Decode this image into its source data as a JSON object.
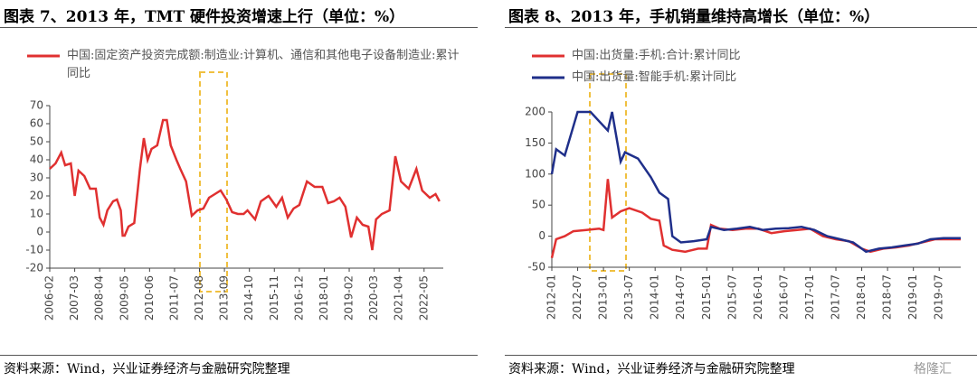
{
  "chart_data": [
    {
      "type": "line",
      "title": "图表 7、2013 年，TMT 硬件投资增速上行（单位：%）",
      "source": "资料来源：Wind，兴业证券经济与金融研究院整理",
      "xlim": [
        "2006-02",
        "2023-03"
      ],
      "xticks": [
        "2006-02",
        "2007-03",
        "2008-04",
        "2009-05",
        "2010-06",
        "2011-07",
        "2012-08",
        "2013-09",
        "2014-10",
        "2015-11",
        "2016-12",
        "2018-01",
        "2019-02",
        "2020-03",
        "2021-04",
        "2022-05"
      ],
      "ylim": [
        -20,
        70
      ],
      "yticks": [
        -20,
        -10,
        0,
        10,
        20,
        30,
        40,
        50,
        60,
        70
      ],
      "series": [
        {
          "name": "中国:固定资产投资完成额:制造业:计算机、通信和其他电子设备制造业:累计同比",
          "color": "#e03030",
          "x": [
            "2006-02",
            "2006-05",
            "2006-08",
            "2006-10",
            "2007-01",
            "2007-03",
            "2007-05",
            "2007-08",
            "2007-11",
            "2008-02",
            "2008-04",
            "2008-06",
            "2008-08",
            "2008-11",
            "2009-01",
            "2009-03",
            "2009-04",
            "2009-05",
            "2009-07",
            "2009-10",
            "2010-01",
            "2010-03",
            "2010-05",
            "2010-07",
            "2010-10",
            "2011-01",
            "2011-03",
            "2011-05",
            "2011-08",
            "2011-10",
            "2012-01",
            "2012-04",
            "2012-07",
            "2012-10",
            "2013-01",
            "2013-04",
            "2013-07",
            "2013-10",
            "2014-01",
            "2014-04",
            "2014-07",
            "2014-09",
            "2015-01",
            "2015-04",
            "2015-08",
            "2015-12",
            "2016-03",
            "2016-06",
            "2016-09",
            "2016-12",
            "2017-04",
            "2017-08",
            "2017-12",
            "2018-03",
            "2018-06",
            "2018-09",
            "2018-12",
            "2019-03",
            "2019-06",
            "2019-09",
            "2019-12",
            "2020-02",
            "2020-04",
            "2020-07",
            "2020-11",
            "2021-02",
            "2021-05",
            "2021-09",
            "2022-01",
            "2022-04",
            "2022-08",
            "2022-11",
            "2023-01"
          ],
          "values": [
            35,
            38,
            44,
            37,
            38,
            20,
            34,
            31,
            24,
            24,
            8,
            4,
            12,
            17,
            18,
            12,
            -2,
            -2,
            3,
            5,
            35,
            52,
            40,
            46,
            48,
            62,
            62,
            48,
            40,
            35,
            28,
            9,
            12,
            13,
            19,
            21,
            23,
            18,
            11,
            10,
            10,
            12,
            7,
            17,
            20,
            14,
            19,
            8,
            13,
            15,
            28,
            25,
            25,
            16,
            17,
            19,
            14,
            -3,
            8,
            4,
            3,
            -10,
            7,
            10,
            12,
            42,
            28,
            24,
            35,
            23,
            19,
            21,
            17
          ]
        }
      ]
    },
    {
      "type": "line",
      "title": "图表 8、2013 年，手机销量维持高增长（单位：%）",
      "source": "资料来源：Wind，兴业证券经济与金融研究院整理",
      "watermark": "格隆汇",
      "xlim": [
        "2012-01",
        "2019-12"
      ],
      "xticks": [
        "2012-01",
        "2012-07",
        "2013-01",
        "2013-07",
        "2014-01",
        "2014-07",
        "2015-01",
        "2015-07",
        "2016-01",
        "2016-07",
        "2017-01",
        "2017-07",
        "2018-01",
        "2018-07",
        "2019-01",
        "2019-07"
      ],
      "ylim": [
        -50,
        200
      ],
      "yticks": [
        -50,
        0,
        50,
        100,
        150,
        200
      ],
      "series": [
        {
          "name": "中国:出货量:手机:合计:累计同比",
          "color": "#e03030",
          "x": [
            "2012-01",
            "2012-02",
            "2012-04",
            "2012-06",
            "2012-09",
            "2012-12",
            "2013-01",
            "2013-02",
            "2013-03",
            "2013-05",
            "2013-07",
            "2013-10",
            "2013-12",
            "2014-02",
            "2014-03",
            "2014-05",
            "2014-08",
            "2014-11",
            "2015-01",
            "2015-02",
            "2015-04",
            "2015-07",
            "2015-10",
            "2016-01",
            "2016-04",
            "2016-07",
            "2016-10",
            "2017-01",
            "2017-04",
            "2017-07",
            "2017-10",
            "2018-01",
            "2018-03",
            "2018-06",
            "2018-09",
            "2018-12",
            "2019-03",
            "2019-06",
            "2019-09",
            "2019-12"
          ],
          "values": [
            -35,
            -5,
            0,
            8,
            10,
            12,
            10,
            92,
            30,
            40,
            45,
            38,
            28,
            25,
            -15,
            -22,
            -25,
            -20,
            -20,
            18,
            12,
            10,
            12,
            12,
            5,
            8,
            10,
            12,
            0,
            -5,
            -8,
            -20,
            -25,
            -20,
            -18,
            -15,
            -10,
            -5,
            -5,
            -5
          ]
        },
        {
          "name": "中国:出货量:智能手机:累计同比",
          "color": "#1f2f8a",
          "x": [
            "2012-01",
            "2012-02",
            "2012-04",
            "2012-07",
            "2012-10",
            "2012-12",
            "2013-02",
            "2013-03",
            "2013-05",
            "2013-06",
            "2013-09",
            "2013-12",
            "2014-02",
            "2014-04",
            "2014-05",
            "2014-07",
            "2014-10",
            "2015-01",
            "2015-02",
            "2015-05",
            "2015-08",
            "2015-11",
            "2016-02",
            "2016-05",
            "2016-08",
            "2016-11",
            "2017-02",
            "2017-05",
            "2017-08",
            "2017-11",
            "2018-02",
            "2018-05",
            "2018-08",
            "2018-11",
            "2019-02",
            "2019-05",
            "2019-08",
            "2019-12"
          ],
          "values": [
            100,
            140,
            130,
            200,
            200,
            185,
            170,
            200,
            120,
            135,
            125,
            95,
            70,
            60,
            0,
            -10,
            -8,
            -5,
            15,
            10,
            12,
            15,
            10,
            12,
            13,
            15,
            10,
            0,
            -5,
            -10,
            -25,
            -20,
            -18,
            -15,
            -12,
            -5,
            -3,
            -3
          ]
        }
      ]
    }
  ]
}
